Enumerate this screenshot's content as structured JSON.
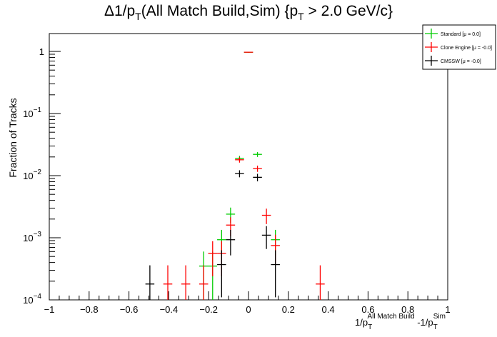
{
  "chart_data": {
    "type": "scatter",
    "title": "Δ1/p",
    "title_sub": "T",
    "title_rest": "(All Match Build,Sim) {p",
    "title_sub2": "T",
    "title_end": " > 2.0 GeV/c}",
    "xlabel_parts": [
      "1/p",
      "T",
      "All Match Build",
      " -1/p",
      "T",
      "Sim"
    ],
    "ylabel": "Fraction of Tracks",
    "xlim": [
      -1,
      1
    ],
    "ylim": [
      0.0001,
      2
    ],
    "yscale": "log",
    "xticks": [
      "−1",
      "−0.8",
      "−0.6",
      "−0.4",
      "−0.2",
      "0",
      "0.2",
      "0.4",
      "0.6",
      "0.8",
      "1"
    ],
    "xtick_values": [
      -1,
      -0.8,
      -0.6,
      -0.4,
      -0.2,
      0,
      0.2,
      0.4,
      0.6,
      0.8,
      1
    ],
    "yticks": [
      {
        "v": 1,
        "base": "1",
        "exp": ""
      },
      {
        "v": 0.1,
        "base": "10",
        "exp": "−1"
      },
      {
        "v": 0.01,
        "base": "10",
        "exp": "−2"
      },
      {
        "v": 0.001,
        "base": "10",
        "exp": "−3"
      },
      {
        "v": 0.0001,
        "base": "10",
        "exp": "−4"
      }
    ],
    "bin_width": 0.045,
    "legend_position": "top-right",
    "series": [
      {
        "name": "Standard  [μ = 0.0]",
        "color": "#00cc00",
        "points": [
          [
            -0.045,
            0.019,
            0.00185
          ],
          [
            0,
            0.97,
            0.013
          ],
          [
            0.045,
            0.022,
            0.002
          ],
          [
            -0.09,
            0.0024,
            0.00066
          ],
          [
            -0.135,
            0.00093,
            0.00041
          ],
          [
            -0.225,
            0.00035,
            0.00025
          ],
          [
            -0.18,
            0.00035,
            0.00025
          ],
          [
            0.135,
            0.00093,
            0.00041
          ]
        ]
      },
      {
        "name": "Clone Engine  [μ = -0.0]",
        "color": "#ff0000",
        "points": [
          [
            -0.045,
            0.018,
            0.0018
          ],
          [
            0,
            0.97,
            0.013
          ],
          [
            0.045,
            0.013,
            0.0015
          ],
          [
            0.09,
            0.0023,
            0.00064
          ],
          [
            -0.09,
            0.0016,
            0.00054
          ],
          [
            -0.135,
            0.00056,
            0.00032
          ],
          [
            -0.18,
            0.00056,
            0.00032
          ],
          [
            -0.225,
            0.00018,
            0.00018
          ],
          [
            -0.315,
            0.00018,
            0.00018
          ],
          [
            -0.405,
            0.00018,
            0.00018
          ],
          [
            0.135,
            0.00075,
            0.00037
          ],
          [
            0.36,
            0.00018,
            0.00018
          ]
        ]
      },
      {
        "name": "CMSSW  [μ = -0.0]",
        "color": "#000000",
        "points": [
          [
            -0.045,
            0.0108,
            0.0014
          ],
          [
            0.045,
            0.0094,
            0.0013
          ],
          [
            0.09,
            0.0011,
            0.00044
          ],
          [
            -0.09,
            0.00093,
            0.00041
          ],
          [
            -0.135,
            0.00037,
            0.00026
          ],
          [
            0.135,
            0.00037,
            0.00026
          ],
          [
            -0.495,
            0.00018,
            0.00018
          ]
        ]
      }
    ]
  }
}
